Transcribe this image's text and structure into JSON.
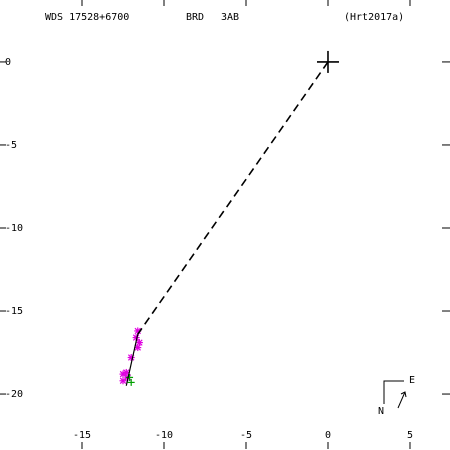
{
  "chart_data": {
    "type": "scatter",
    "header": {
      "id": "WDS 17528+6700",
      "discoverer": "BRD",
      "component": "3AB",
      "reference": "(Hrt2017a)"
    },
    "xlim": [
      -20,
      7.44
    ],
    "ylim": [
      -23.37,
      3.73
    ],
    "xticks": [
      -15,
      -10,
      -5,
      0,
      5
    ],
    "yticks": [
      0,
      -5,
      -10,
      -15,
      -20
    ],
    "primary": {
      "x": 0,
      "y": 0
    },
    "series": [
      {
        "marker": "asterisk",
        "color": "#e000e0",
        "x": [
          -11.6,
          -11.7,
          -11.5,
          -11.6,
          -12.0,
          -12.3,
          -12.5,
          -12.5,
          -12.2
        ],
        "y": [
          -16.2,
          -16.6,
          -16.9,
          -17.2,
          -17.8,
          -18.7,
          -18.8,
          -19.2,
          -19.0
        ]
      },
      {
        "marker": "plus",
        "color": "#00a000",
        "x": [
          -12.0,
          -12.1
        ],
        "y": [
          -19.3,
          -19.0
        ]
      },
      {
        "marker": "line",
        "color": "#000000",
        "x": [
          -12.3,
          -11.6
        ],
        "y": [
          -19.5,
          -16.4
        ]
      },
      {
        "marker": "dashed",
        "color": "#000000",
        "x": [
          0,
          -11.6
        ],
        "y": [
          0,
          -16.4
        ]
      }
    ],
    "compass": {
      "north": "N",
      "east": "E"
    }
  }
}
